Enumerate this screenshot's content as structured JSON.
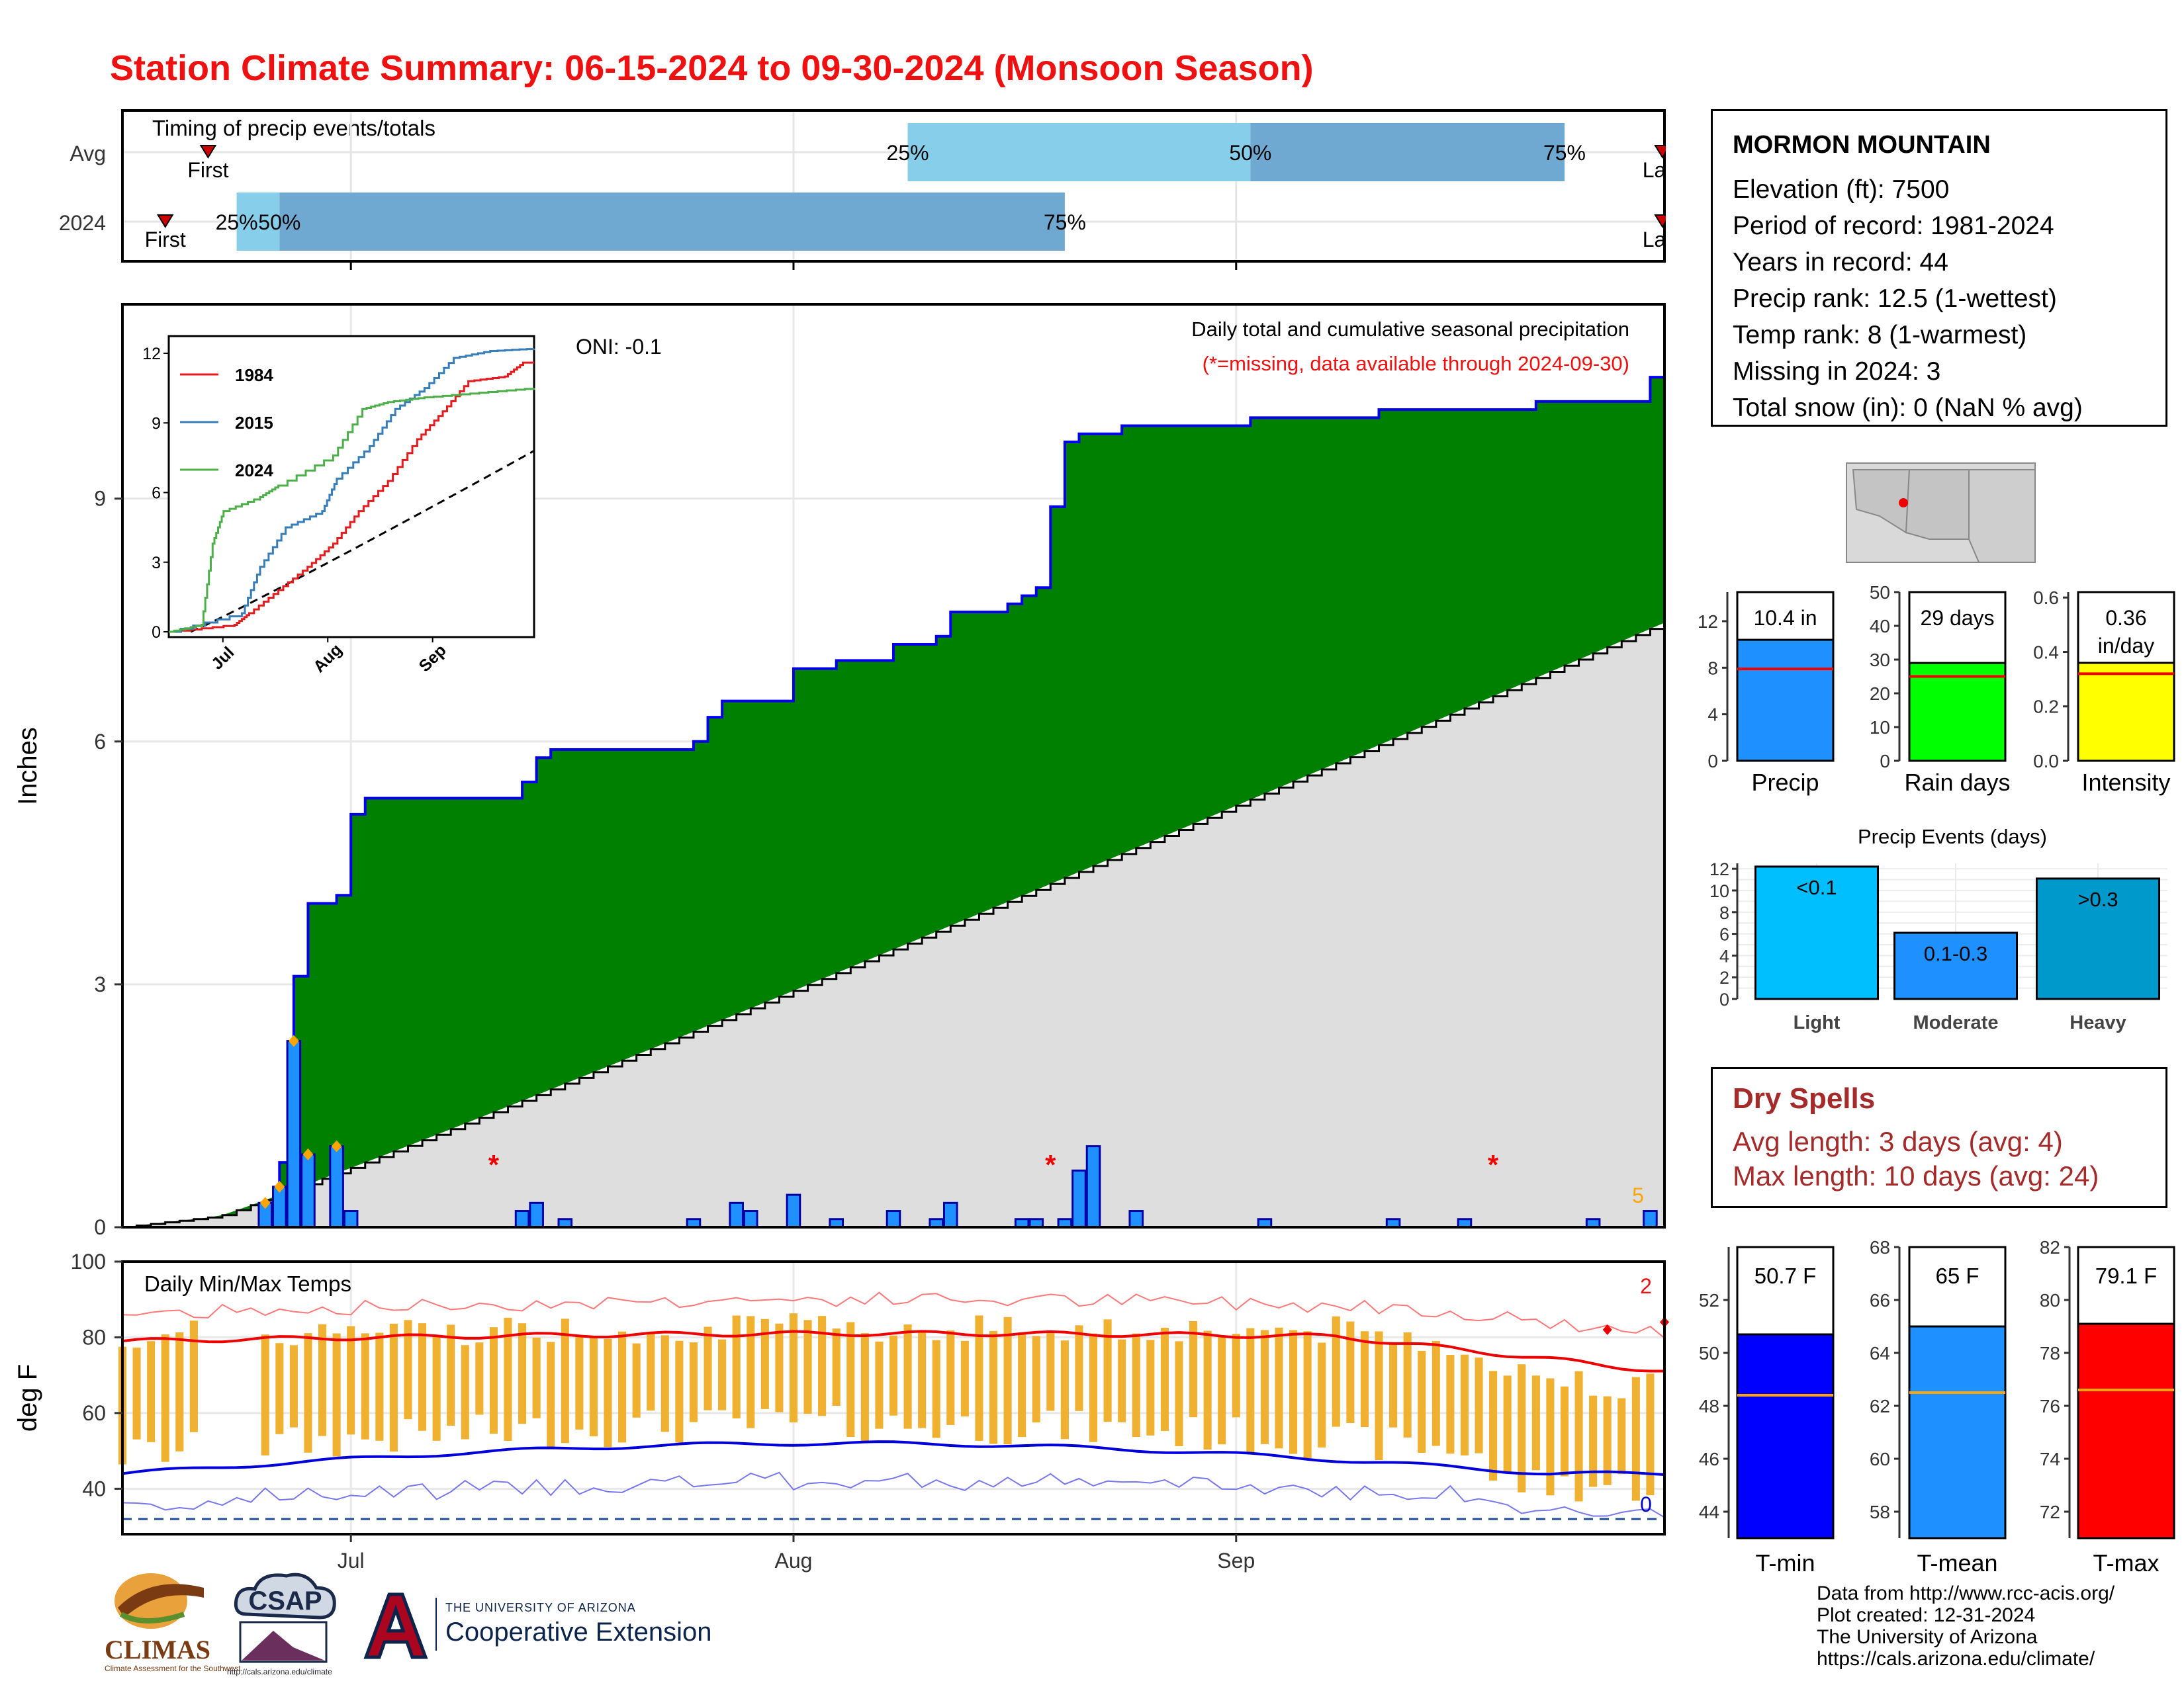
{
  "title": "Station Climate Summary: 06-15-2024 to 09-30-2024 (Monsoon Season)",
  "timing": {
    "label": "Timing of precip events/totals",
    "rows": [
      "Avg",
      "2024"
    ],
    "avg": {
      "first_day": 6,
      "q25_day": 55,
      "q50_day": 79,
      "q75_day": 101,
      "last_day": 158,
      "first_label": "First",
      "last_label": "Last"
    },
    "y2024": {
      "first_day": 3,
      "q25_day": 8,
      "q50_day": 11,
      "q75_day": 66,
      "last_day": 108,
      "first_label": "First",
      "last_label": "Last"
    },
    "q25_label": "25%",
    "q50_label": "50%",
    "q75_label": "75%"
  },
  "precip_panel": {
    "ylabel": "Inches",
    "yticks": [
      "0",
      "3",
      "6",
      "9"
    ],
    "legend_text": "Daily total and cumulative seasonal precipitation",
    "missing_note": "(*=missing, data available through 2024-09-30)",
    "oni": "ONI: -0.1",
    "count_label": "5",
    "month_labels": [
      "Jul",
      "Aug",
      "Sep"
    ]
  },
  "inset": {
    "yticks": [
      "0",
      "3",
      "6",
      "9",
      "12"
    ],
    "xticks": [
      "Jul",
      "Aug",
      "Sep"
    ],
    "legend": [
      {
        "name": "1984",
        "color": "#e41a1c"
      },
      {
        "name": "2015",
        "color": "#377eb8"
      },
      {
        "name": "2024",
        "color": "#4daf4a"
      }
    ]
  },
  "temp_panel": {
    "label": "Daily Min/Max Temps",
    "ylabel": "deg F",
    "yticks": [
      "40",
      "60",
      "80",
      "100"
    ],
    "count_top": "2",
    "count_bottom": "0"
  },
  "station": {
    "name": "MORMON MOUNTAIN",
    "lines": [
      "Elevation (ft): 7500",
      "Period of record: 1981-2024",
      "Years in record: 44",
      "Precip rank: 12.5 (1-wettest)",
      "Temp rank: 8 (1-warmest)",
      "Missing in 2024: 3",
      "Total snow (in): 0 (NaN % avg)"
    ]
  },
  "mini_bars": [
    {
      "name": "Precip",
      "label_line1": "10.4 in",
      "label_line2": "",
      "value": 10.4,
      "avg": 7.9,
      "ymax": 14.5,
      "yticks": [
        0,
        4,
        8,
        12
      ],
      "color": "#1e90ff"
    },
    {
      "name": "Rain days",
      "label_line1": "29 days",
      "label_line2": "",
      "value": 29,
      "avg": 25,
      "ymax": 50,
      "yticks": [
        0,
        10,
        20,
        30,
        40,
        50
      ],
      "color": "#00ff00"
    },
    {
      "name": "Intensity",
      "label_line1": "0.36",
      "label_line2": "in/day",
      "value": 0.36,
      "avg": 0.32,
      "ymax": 0.62,
      "yticks": [
        "0.0",
        "0.2",
        "0.4",
        "0.6"
      ],
      "color": "#ffff00"
    }
  ],
  "events": {
    "title": "Precip Events (days)",
    "ymax": 12.5,
    "yticks": [
      0,
      2,
      4,
      6,
      8,
      10,
      12
    ],
    "bars": [
      {
        "name": "Light",
        "label": "<0.1",
        "value": 12.2,
        "color": "#00bfff"
      },
      {
        "name": "Moderate",
        "label": "0.1-0.3",
        "value": 6.1,
        "color": "#1e90ff"
      },
      {
        "name": "Heavy",
        "label": ">0.3",
        "value": 11.1,
        "color": "#0099cc"
      }
    ]
  },
  "dry_spells": {
    "title": "Dry Spells",
    "avg_line": "Avg length: 3 days (avg: 4)",
    "max_line": "Max length: 10 days (avg: 24)"
  },
  "temp_bars": [
    {
      "name": "T-min",
      "label": "50.7 F",
      "value": 50.7,
      "avg": 48.4,
      "ymin": 43,
      "ymax": 54,
      "yticks": [
        44,
        46,
        48,
        50,
        52
      ],
      "color": "#0000ff"
    },
    {
      "name": "T-mean",
      "label": "65 F",
      "value": 65,
      "avg": 62.5,
      "ymin": 57,
      "ymax": 68,
      "yticks": [
        58,
        60,
        62,
        64,
        66,
        68
      ],
      "color": "#1e90ff"
    },
    {
      "name": "T-max",
      "label": "79.1 F",
      "value": 79.1,
      "avg": 76.6,
      "ymin": 71,
      "ymax": 82,
      "yticks": [
        72,
        74,
        76,
        78,
        80,
        82
      ],
      "color": "#ff0000"
    }
  ],
  "credits": [
    "Data from http://www.rcc-acis.org/",
    "Plot created: 12-31-2024",
    "The University of Arizona",
    "https://cals.arizona.edu/climate/"
  ],
  "logos": {
    "climas": "CLIMAS",
    "climas_sub": "Climate Assessment for the Southwest",
    "csap": "CSAP",
    "csap_url": "http://cals.arizona.edu/climate",
    "ua_top": "THE UNIVERSITY OF ARIZONA",
    "ua_main": "Cooperative Extension"
  },
  "chart_data": [
    {
      "type": "area",
      "title": "Daily total and cumulative seasonal precipitation",
      "ylabel": "Inches",
      "xlabel": "",
      "x_range": [
        "2024-06-15",
        "2024-09-30"
      ],
      "ylim": [
        0,
        11.4
      ],
      "cumulative_2024_breakpoints": [
        [
          "06-15",
          0
        ],
        [
          "06-25",
          0.3
        ],
        [
          "06-26",
          0.8
        ],
        [
          "06-27",
          3.1
        ],
        [
          "06-28",
          4.0
        ],
        [
          "06-30",
          4.1
        ],
        [
          "07-01",
          5.1
        ],
        [
          "07-02",
          5.3
        ],
        [
          "07-12",
          5.3
        ],
        [
          "07-13",
          5.5
        ],
        [
          "07-14",
          5.8
        ],
        [
          "07-15",
          5.9
        ],
        [
          "07-25",
          6.0
        ],
        [
          "07-26",
          6.3
        ],
        [
          "07-27",
          6.5
        ],
        [
          "08-01",
          6.9
        ],
        [
          "08-04",
          7.0
        ],
        [
          "08-08",
          7.2
        ],
        [
          "08-11",
          7.3
        ],
        [
          "08-12",
          7.6
        ],
        [
          "08-16",
          7.7
        ],
        [
          "08-17",
          7.8
        ],
        [
          "08-18",
          7.9
        ],
        [
          "08-19",
          8.9
        ],
        [
          "08-20",
          9.7
        ],
        [
          "08-21",
          9.8
        ],
        [
          "08-24",
          9.9
        ],
        [
          "09-02",
          10.0
        ],
        [
          "09-11",
          10.1
        ],
        [
          "09-22",
          10.2
        ],
        [
          "09-30",
          10.5
        ]
      ],
      "cumulative_avg_end": 7.9,
      "daily_precip": [
        [
          "06-25",
          0.3
        ],
        [
          "06-26",
          0.5
        ],
        [
          "06-27",
          2.3
        ],
        [
          "06-28",
          0.9
        ],
        [
          "06-30",
          1.0
        ],
        [
          "07-01",
          0.2
        ],
        [
          "07-13",
          0.2
        ],
        [
          "07-14",
          0.3
        ],
        [
          "07-16",
          0.1
        ],
        [
          "07-25",
          0.1
        ],
        [
          "07-28",
          0.3
        ],
        [
          "07-29",
          0.2
        ],
        [
          "08-01",
          0.4
        ],
        [
          "08-04",
          0.1
        ],
        [
          "08-08",
          0.2
        ],
        [
          "08-11",
          0.1
        ],
        [
          "08-12",
          0.3
        ],
        [
          "08-17",
          0.1
        ],
        [
          "08-18",
          0.1
        ],
        [
          "08-20",
          0.1
        ],
        [
          "08-21",
          0.7
        ],
        [
          "08-22",
          1.0
        ],
        [
          "08-25",
          0.2
        ],
        [
          "09-03",
          0.1
        ],
        [
          "09-12",
          0.1
        ],
        [
          "09-17",
          0.1
        ],
        [
          "09-26",
          0.1
        ],
        [
          "09-30",
          0.2
        ]
      ],
      "missing_days": [
        "07-11",
        "08-19",
        "09-19"
      ]
    },
    {
      "type": "line",
      "title": "",
      "x": [
        "Jul",
        "Aug",
        "Sep"
      ],
      "series": [
        {
          "name": "1984",
          "end_value": 11.6
        },
        {
          "name": "2015",
          "end_value": 12.2
        },
        {
          "name": "2024",
          "end_value": 10.5
        }
      ],
      "ylim": [
        0,
        12.4
      ]
    },
    {
      "type": "bar",
      "title": "Daily Min/Max Temps",
      "ylabel": "deg F",
      "ylim": [
        32,
        100
      ],
      "avg_max_typical": 80,
      "avg_min_typical": 50,
      "freezing_line": 32
    }
  ]
}
